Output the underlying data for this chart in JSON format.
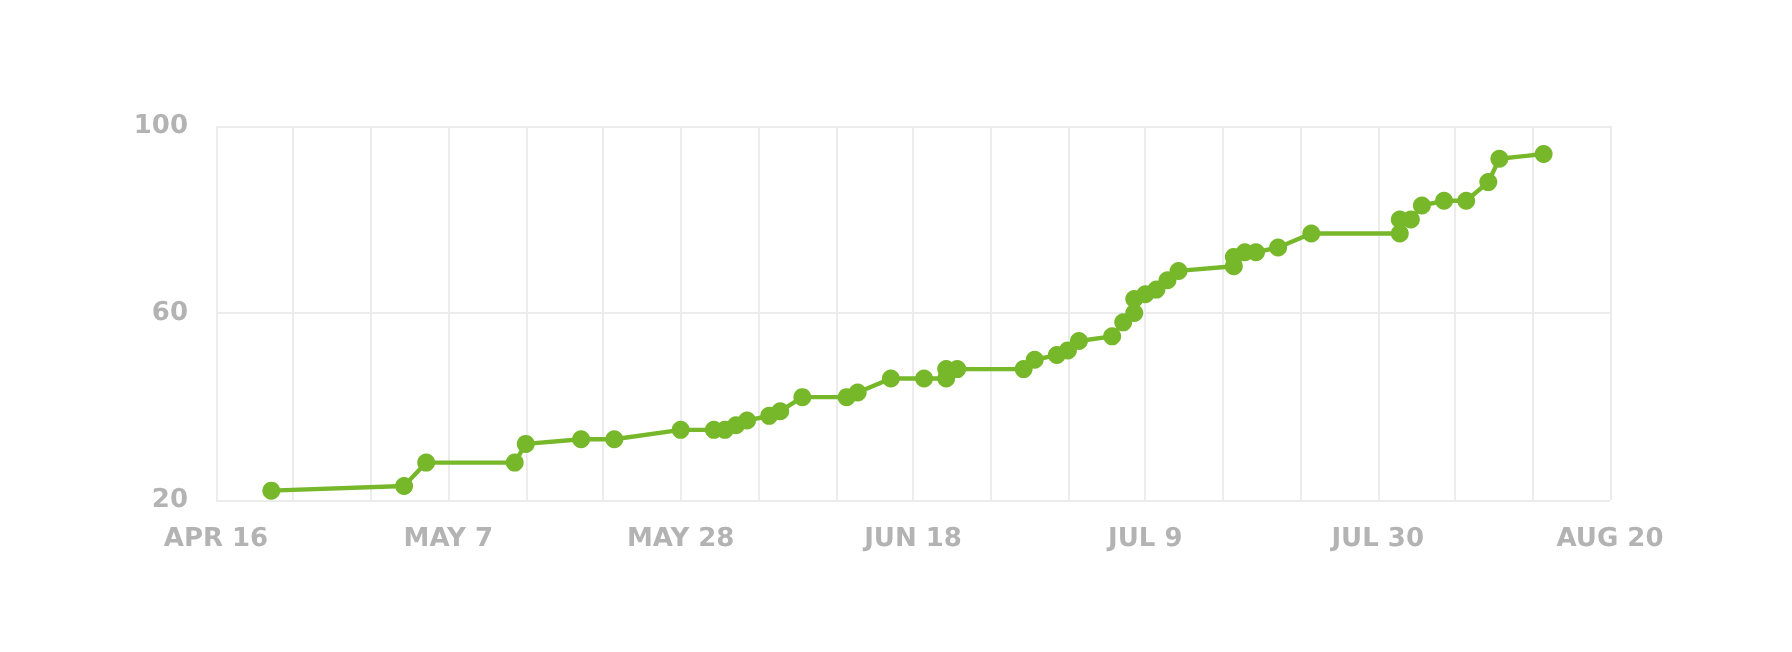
{
  "chart_data": {
    "type": "line",
    "x": [
      "--04-21",
      "--05-03",
      "--05-05",
      "--05-13",
      "--05-14",
      "--05-19",
      "--05-22",
      "--05-28",
      "--05-31",
      "--06-01",
      "--06-02",
      "--06-03",
      "--06-05",
      "--06-06",
      "--06-08",
      "--06-12",
      "--06-13",
      "--06-16",
      "--06-19",
      "--06-21",
      "--06-21",
      "--06-22",
      "--06-28",
      "--06-29",
      "--07-01",
      "--07-02",
      "--07-03",
      "--07-06",
      "--07-07",
      "--07-08",
      "--07-08",
      "--07-09",
      "--07-10",
      "--07-11",
      "--07-12",
      "--07-17",
      "--07-17",
      "--07-18",
      "--07-19",
      "--07-21",
      "--07-24",
      "--08-01",
      "--08-01",
      "--08-02",
      "--08-03",
      "--08-05",
      "--08-07",
      "--08-09",
      "--08-10",
      "--08-14"
    ],
    "series": [
      {
        "color": "#76b82a",
        "values": [
          22,
          23,
          28,
          28,
          32,
          33,
          33,
          35,
          35,
          35,
          36,
          37,
          38,
          39,
          42,
          42,
          43,
          46,
          46,
          46,
          48,
          48,
          48,
          50,
          51,
          52,
          54,
          55,
          58,
          60,
          63,
          64,
          65,
          67,
          69,
          70,
          72,
          73,
          73,
          74,
          77,
          77,
          80,
          80,
          83,
          84,
          84,
          88,
          93,
          94
        ]
      }
    ],
    "xlim": [
      "--04-16",
      "--08-20"
    ],
    "xticks": [
      {
        "value": "--04-16",
        "label": "APR 16"
      },
      {
        "value": "--04-23",
        "label": null
      },
      {
        "value": "--04-30",
        "label": null
      },
      {
        "value": "--05-07",
        "label": "MAY 7"
      },
      {
        "value": "--05-14",
        "label": null
      },
      {
        "value": "--05-21",
        "label": null
      },
      {
        "value": "--05-28",
        "label": "MAY 28"
      },
      {
        "value": "--06-04",
        "label": null
      },
      {
        "value": "--06-11",
        "label": null
      },
      {
        "value": "--06-18",
        "label": "JUN 18"
      },
      {
        "value": "--06-25",
        "label": null
      },
      {
        "value": "--07-02",
        "label": null
      },
      {
        "value": "--07-09",
        "label": "JUL 9"
      },
      {
        "value": "--07-16",
        "label": null
      },
      {
        "value": "--07-23",
        "label": null
      },
      {
        "value": "--07-30",
        "label": "JUL 30"
      },
      {
        "value": "--08-06",
        "label": null
      },
      {
        "value": "--08-13",
        "label": null
      },
      {
        "value": "--08-20",
        "label": "AUG 20"
      }
    ],
    "ylim": [
      20,
      100
    ],
    "yticks": [
      20,
      60,
      100
    ],
    "grid": true,
    "marker": "circle",
    "line_style": "solid"
  }
}
